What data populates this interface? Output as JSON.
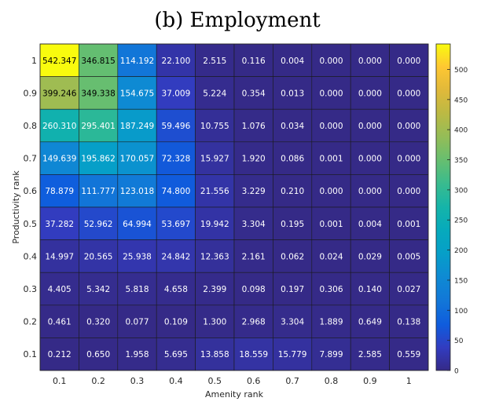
{
  "chart_data": {
    "type": "heatmap",
    "title": "(b) Employment",
    "xlabel": "Amenity rank",
    "ylabel": "Productivity rank",
    "x_categories": [
      "0.1",
      "0.2",
      "0.3",
      "0.4",
      "0.5",
      "0.6",
      "0.7",
      "0.8",
      "0.9",
      "1"
    ],
    "y_categories": [
      "1",
      "0.9",
      "0.8",
      "0.7",
      "0.6",
      "0.5",
      "0.4",
      "0.3",
      "0.2",
      "0.1"
    ],
    "values": [
      [
        "542.347",
        "346.815",
        "114.192",
        "22.100",
        "2.515",
        "0.116",
        "0.004",
        "0.000",
        "0.000",
        "0.000"
      ],
      [
        "399.246",
        "349.338",
        "154.675",
        "37.009",
        "5.224",
        "0.354",
        "0.013",
        "0.000",
        "0.000",
        "0.000"
      ],
      [
        "260.310",
        "295.401",
        "187.249",
        "59.496",
        "10.755",
        "1.076",
        "0.034",
        "0.000",
        "0.000",
        "0.000"
      ],
      [
        "149.639",
        "195.862",
        "170.057",
        "72.328",
        "15.927",
        "1.920",
        "0.086",
        "0.001",
        "0.000",
        "0.000"
      ],
      [
        "78.879",
        "111.777",
        "123.018",
        "74.800",
        "21.556",
        "3.229",
        "0.210",
        "0.000",
        "0.000",
        "0.000"
      ],
      [
        "37.282",
        "52.962",
        "64.994",
        "53.697",
        "19.942",
        "3.304",
        "0.195",
        "0.001",
        "0.004",
        "0.001"
      ],
      [
        "14.997",
        "20.565",
        "25.938",
        "24.842",
        "12.363",
        "2.161",
        "0.062",
        "0.024",
        "0.029",
        "0.005"
      ],
      [
        "4.405",
        "5.342",
        "5.818",
        "4.658",
        "2.399",
        "0.098",
        "0.197",
        "0.306",
        "0.140",
        "0.027"
      ],
      [
        "0.461",
        "0.320",
        "0.077",
        "0.109",
        "1.300",
        "2.968",
        "3.304",
        "1.889",
        "0.649",
        "0.138"
      ],
      [
        "0.212",
        "0.650",
        "1.958",
        "5.695",
        "13.858",
        "18.559",
        "15.779",
        "7.899",
        "2.585",
        "0.559"
      ]
    ],
    "colorbar": {
      "colormap": "parula",
      "range": [
        0,
        542.347
      ],
      "ticks": [
        "0",
        "50",
        "100",
        "150",
        "200",
        "250",
        "300",
        "350",
        "400",
        "450",
        "500"
      ]
    },
    "grid": false,
    "legend": "colorbar-right"
  }
}
